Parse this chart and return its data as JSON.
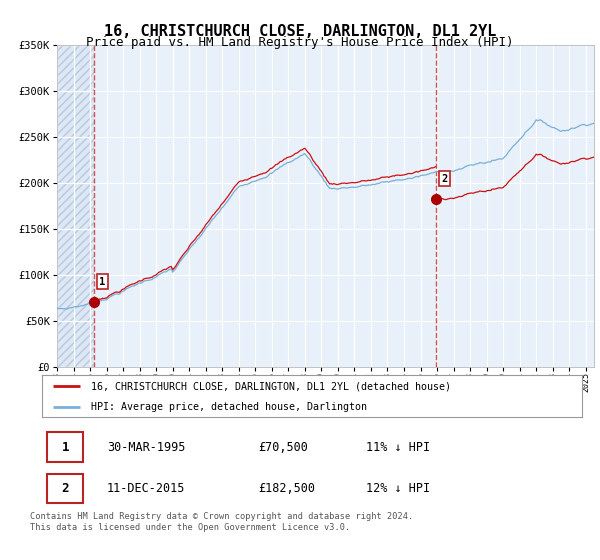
{
  "title": "16, CHRISTCHURCH CLOSE, DARLINGTON, DL1 2YL",
  "subtitle": "Price paid vs. HM Land Registry's House Price Index (HPI)",
  "title_fontsize": 11,
  "subtitle_fontsize": 9,
  "bg_color": "#dce8f5",
  "plot_bg_color": "#e8f0fa",
  "grid_color": "#ffffff",
  "sale1_date": 1995.24,
  "sale1_price": 70500,
  "sale2_date": 2015.95,
  "sale2_price": 182500,
  "vline_color": "#d04040",
  "sale_marker_color": "#aa0000",
  "red_line_color": "#cc1111",
  "blue_line_color": "#7ab0d8",
  "ylim_min": 0,
  "ylim_max": 350000,
  "xlim_min": 1993.0,
  "xlim_max": 2025.5,
  "legend_label_red": "16, CHRISTCHURCH CLOSE, DARLINGTON, DL1 2YL (detached house)",
  "legend_label_blue": "HPI: Average price, detached house, Darlington",
  "footer": "Contains HM Land Registry data © Crown copyright and database right 2024.\nThis data is licensed under the Open Government Licence v3.0.",
  "sale1_label": "1",
  "sale2_label": "2",
  "table_data": [
    [
      "1",
      "30-MAR-1995",
      "£70,500",
      "11% ↓ HPI"
    ],
    [
      "2",
      "11-DEC-2015",
      "£182,500",
      "12% ↓ HPI"
    ]
  ],
  "yticks": [
    0,
    50000,
    100000,
    150000,
    200000,
    250000,
    300000,
    350000
  ],
  "ytick_labels": [
    "£0",
    "£50K",
    "£100K",
    "£150K",
    "£200K",
    "£250K",
    "£300K",
    "£350K"
  ]
}
